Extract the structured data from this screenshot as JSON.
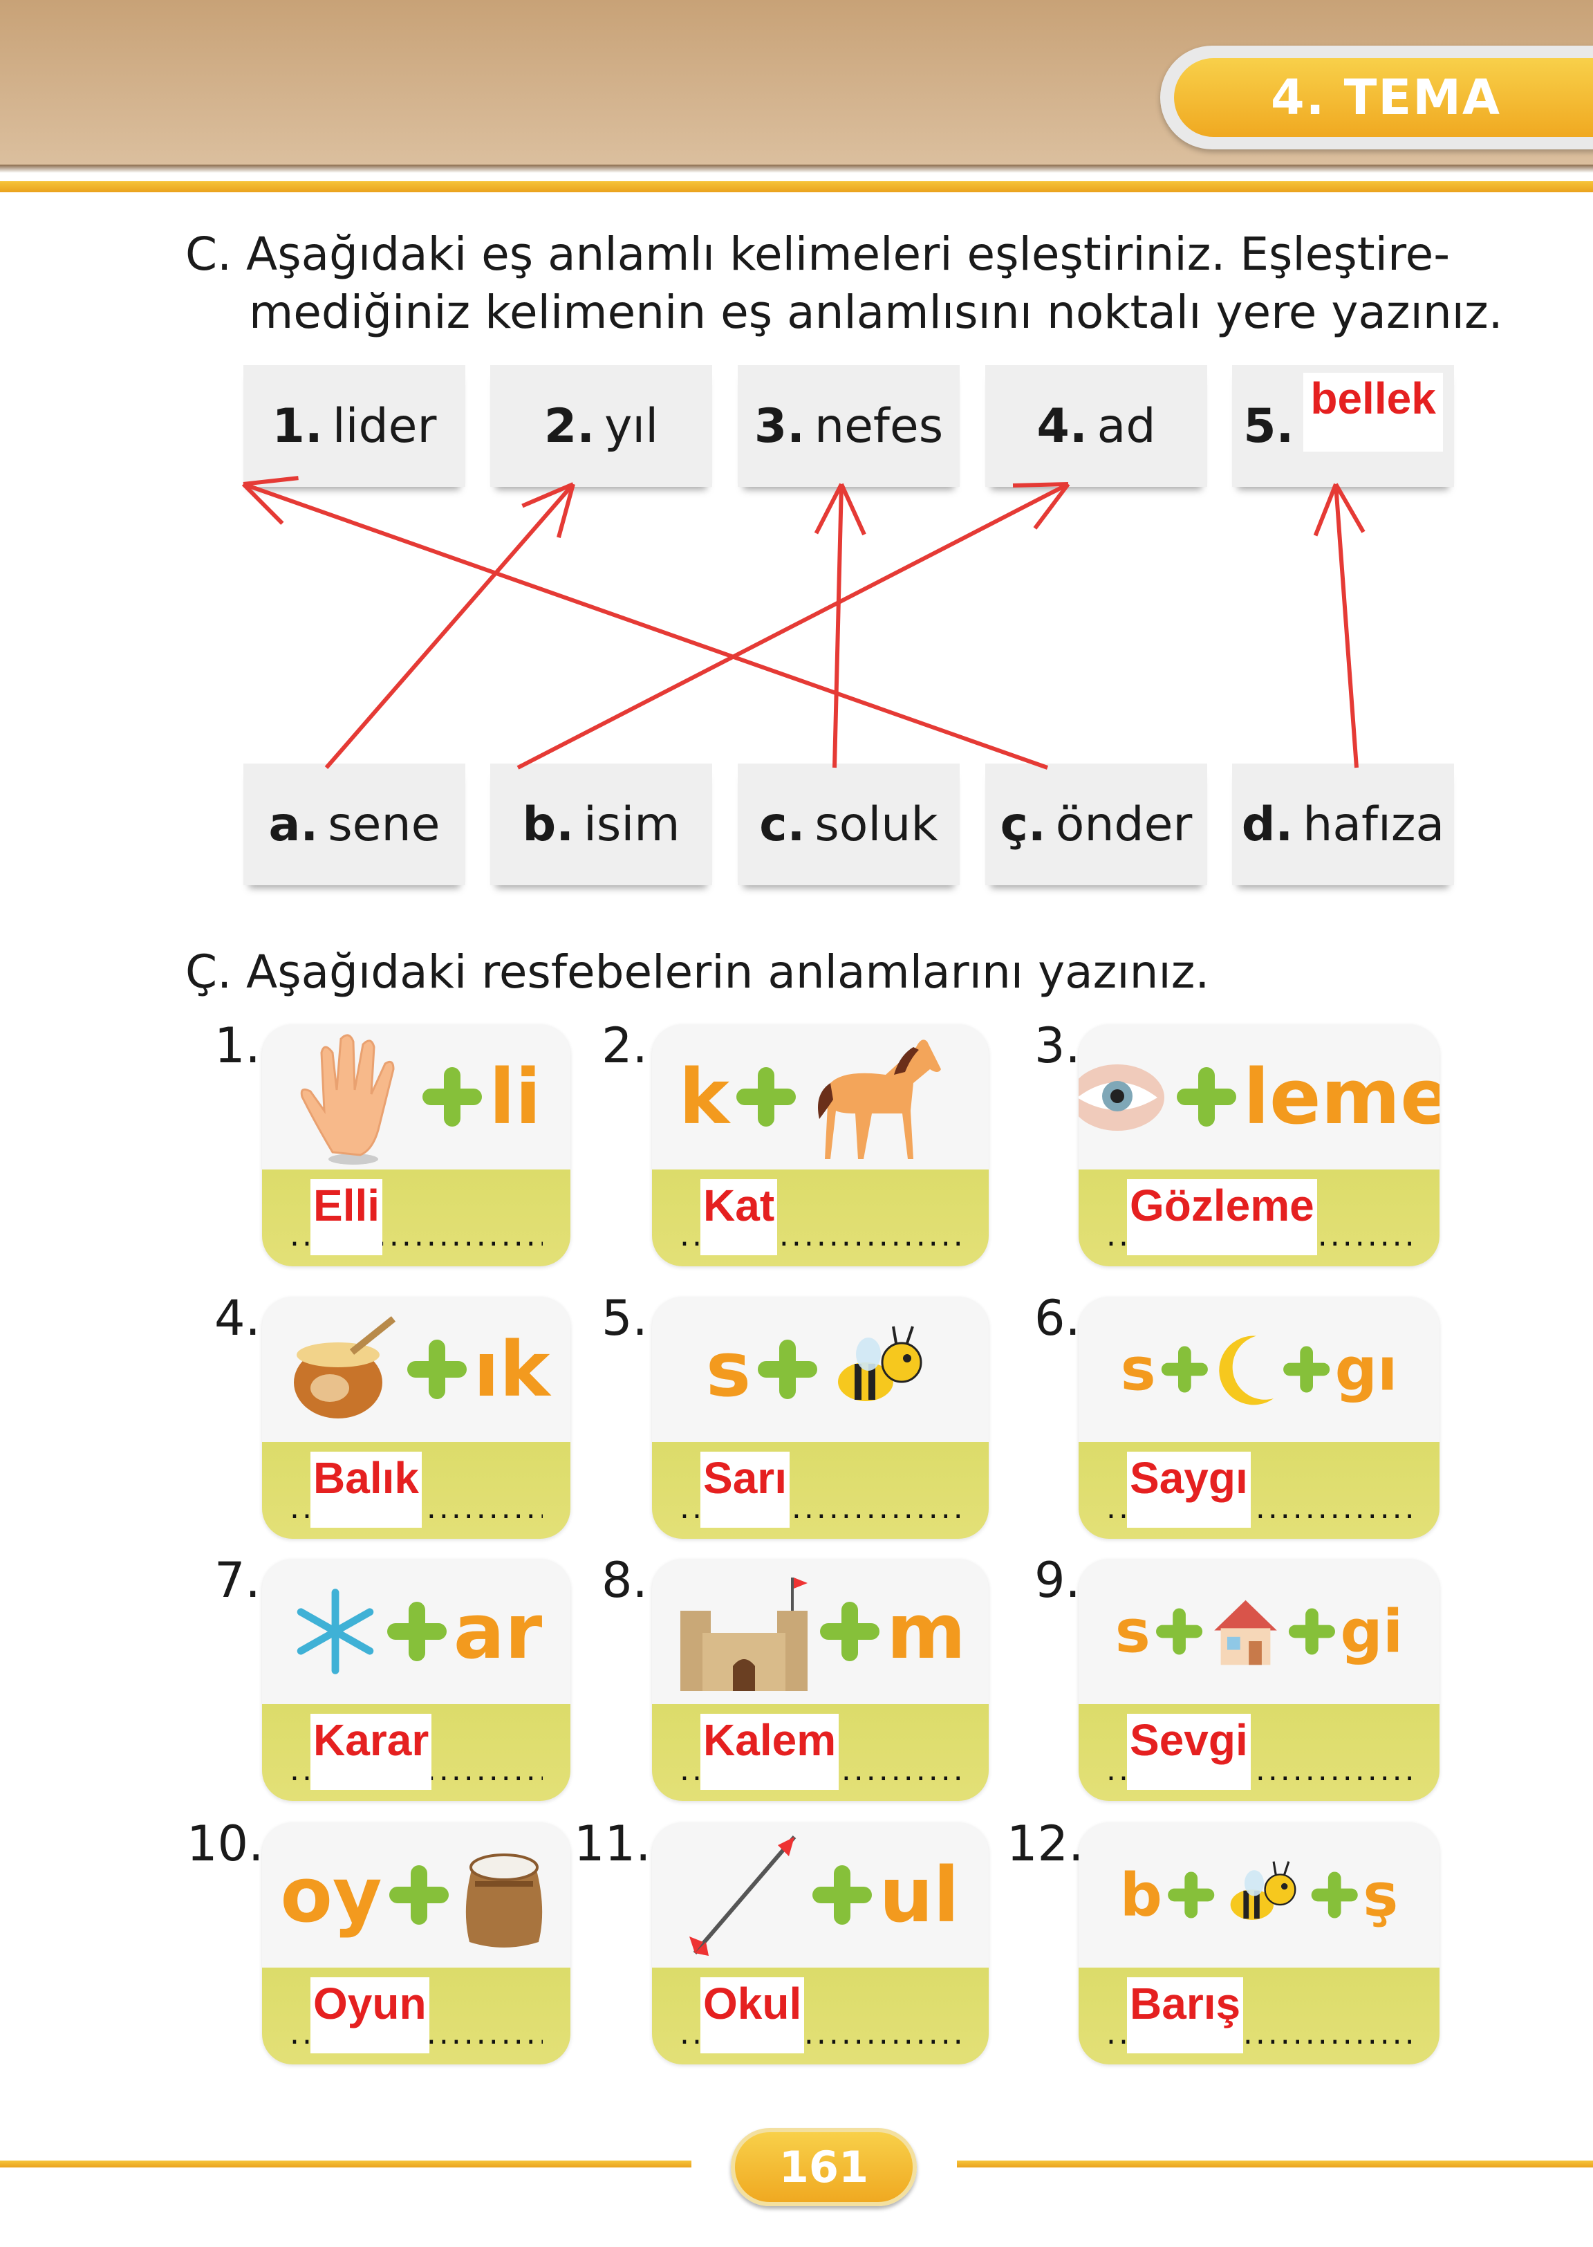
{
  "header": {
    "tema": "4. TEMA"
  },
  "section_c": {
    "title_line1": "C. Aşağıdaki eş anlamlı kelimeleri eşleştiriniz. Eşleştire-",
    "title_line2": "mediğiniz kelimenin eş anlamlısını noktalı yere yazınız.",
    "top_words": [
      {
        "num": "1.",
        "word": "lider"
      },
      {
        "num": "2.",
        "word": "yıl"
      },
      {
        "num": "3.",
        "word": "nefes"
      },
      {
        "num": "4.",
        "word": "ad"
      },
      {
        "num": "5.",
        "word": "",
        "answer": "bellek"
      }
    ],
    "bottom_words": [
      {
        "num": "a.",
        "word": "sene"
      },
      {
        "num": "b.",
        "word": "isim"
      },
      {
        "num": "c.",
        "word": "soluk"
      },
      {
        "num": "ç.",
        "word": "önder"
      },
      {
        "num": "d.",
        "word": "hafıza"
      }
    ],
    "matches": [
      [
        "a",
        "2"
      ],
      [
        "b",
        "4"
      ],
      [
        "c",
        "3"
      ],
      [
        "ç",
        "1"
      ],
      [
        "d",
        "5"
      ]
    ],
    "arrow_color": "#e53a35"
  },
  "section_cc": {
    "title": "Ç. Aşağıdaki resfebelerin anlamlarını yazınız.",
    "rebuses": [
      {
        "num": "1.",
        "parts": [
          {
            "icon": "hand-icon"
          },
          {
            "plus": true
          },
          {
            "text": "li"
          }
        ],
        "answer": "Elli"
      },
      {
        "num": "2.",
        "parts": [
          {
            "text": "k"
          },
          {
            "plus": true
          },
          {
            "icon": "horse-icon"
          }
        ],
        "answer": "Kat"
      },
      {
        "num": "3.",
        "parts": [
          {
            "icon": "eye-icon"
          },
          {
            "plus": true
          },
          {
            "text": "leme"
          }
        ],
        "answer": "Gözleme"
      },
      {
        "num": "4.",
        "parts": [
          {
            "icon": "honey-pot-icon"
          },
          {
            "plus": true
          },
          {
            "text": "ık"
          }
        ],
        "answer": "Balık"
      },
      {
        "num": "5.",
        "parts": [
          {
            "text": "s"
          },
          {
            "plus": true
          },
          {
            "icon": "bee-icon"
          }
        ],
        "answer": "Sarı"
      },
      {
        "num": "6.",
        "parts": [
          {
            "text": "s"
          },
          {
            "plus": true
          },
          {
            "icon": "moon-icon"
          },
          {
            "plus": true
          },
          {
            "text": "gı"
          }
        ],
        "answer": "Saygı"
      },
      {
        "num": "7.",
        "parts": [
          {
            "icon": "snowflake-icon"
          },
          {
            "plus": true
          },
          {
            "text": "ar"
          }
        ],
        "answer": "Karar"
      },
      {
        "num": "8.",
        "parts": [
          {
            "icon": "castle-icon"
          },
          {
            "plus": true
          },
          {
            "text": "m"
          }
        ],
        "answer": "Kalem"
      },
      {
        "num": "9.",
        "parts": [
          {
            "text": "s"
          },
          {
            "plus": true
          },
          {
            "icon": "house-icon"
          },
          {
            "plus": true
          },
          {
            "text": "gi"
          }
        ],
        "answer": "Sevgi"
      },
      {
        "num": "10.",
        "parts": [
          {
            "text": "oy"
          },
          {
            "plus": true
          },
          {
            "icon": "flour-sack-icon"
          }
        ],
        "answer": "Oyun"
      },
      {
        "num": "11.",
        "parts": [
          {
            "icon": "arrow-icon"
          },
          {
            "plus": true
          },
          {
            "text": "ul"
          }
        ],
        "answer": "Okul"
      },
      {
        "num": "12.",
        "parts": [
          {
            "text": "b"
          },
          {
            "plus": true
          },
          {
            "icon": "bee-icon"
          },
          {
            "plus": true
          },
          {
            "text": "ş"
          }
        ],
        "answer": "Barış"
      }
    ]
  },
  "footer": {
    "page_number": "161"
  }
}
